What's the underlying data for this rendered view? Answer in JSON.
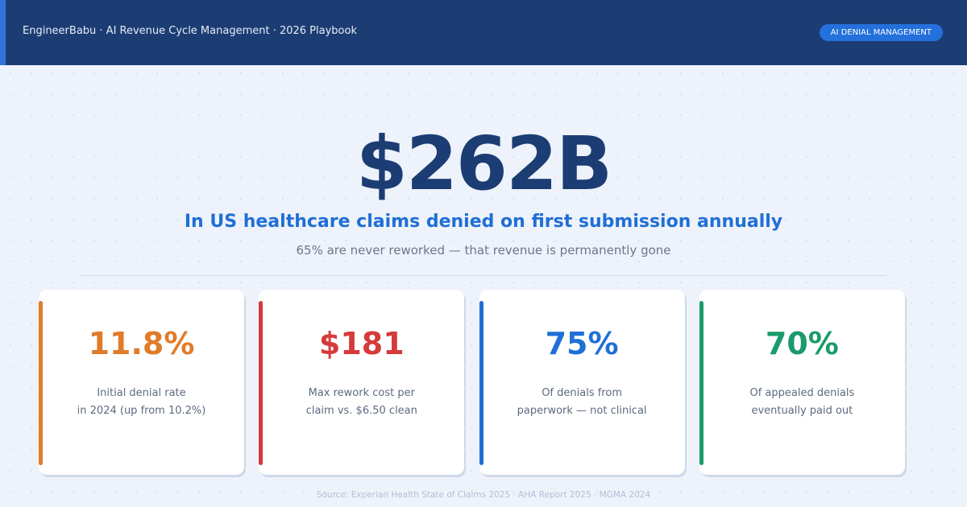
{
  "header": {
    "title": "EngineerBabu · AI Revenue Cycle Management · 2026 Playbook",
    "badge": "AI DENIAL MANAGEMENT"
  },
  "hero": {
    "value": "$262B",
    "headline": "In US healthcare claims denied on first submission annually",
    "subtext": "65% are never reworked — that revenue is permanently gone"
  },
  "stats": [
    {
      "value": "11.8%",
      "lines": [
        "Initial denial rate",
        "in 2024 (up from 10.2%)"
      ],
      "color": "#e07b2a"
    },
    {
      "value": "$181",
      "lines": [
        "Max rework cost per",
        "claim vs. $6.50 clean"
      ],
      "color": "#d63a3a"
    },
    {
      "value": "75%",
      "lines": [
        "Of denials from",
        "paperwork — not clinical"
      ],
      "color": "#1f6fd6"
    },
    {
      "value": "70%",
      "lines": [
        "Of appealed denials",
        "eventually paid out"
      ],
      "color": "#1a9b6b"
    }
  ],
  "footer": {
    "source": "Source: Experian Health State of Claims 2025 · AHA Report 2025 · MGMA 2024"
  }
}
